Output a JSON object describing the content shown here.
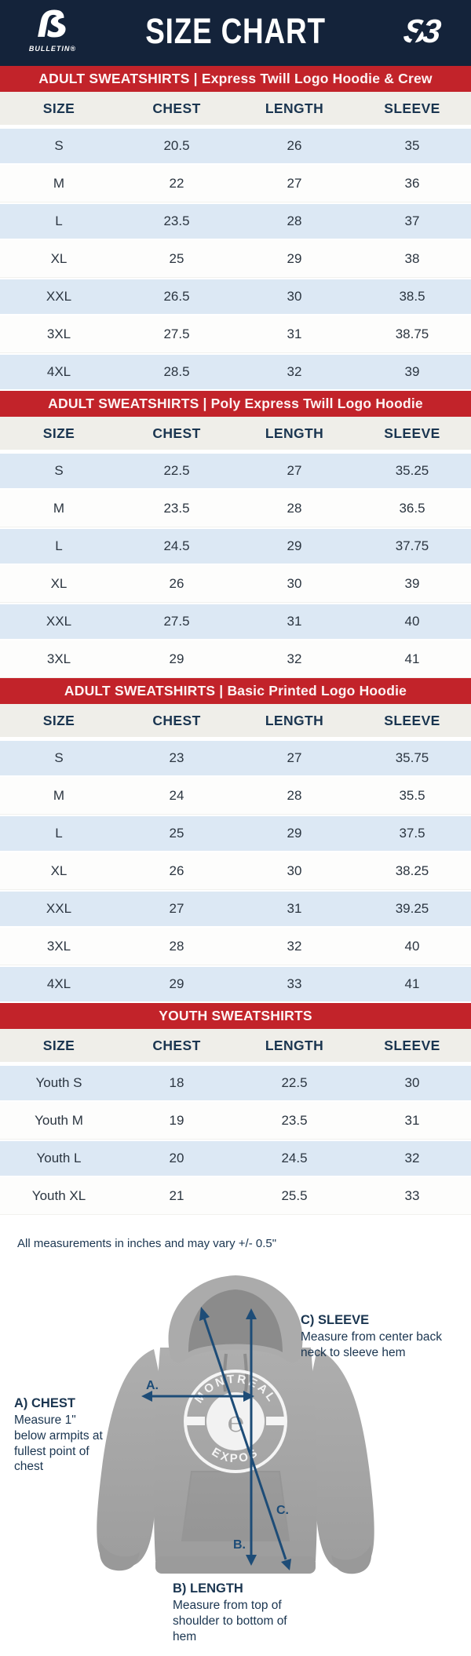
{
  "header": {
    "title": "SIZE CHART",
    "bulletin_mark": "ẞ",
    "bulletin_logo_text": "BULLETIN®",
    "s3_mark": "S3"
  },
  "columns": [
    "SIZE",
    "CHEST",
    "LENGTH",
    "SLEEVE"
  ],
  "tables": [
    {
      "banner": "ADULT SWEATSHIRTS | Express Twill Logo Hoodie & Crew",
      "rows": [
        [
          "S",
          "20.5",
          "26",
          "35"
        ],
        [
          "M",
          "22",
          "27",
          "36"
        ],
        [
          "L",
          "23.5",
          "28",
          "37"
        ],
        [
          "XL",
          "25",
          "29",
          "38"
        ],
        [
          "XXL",
          "26.5",
          "30",
          "38.5"
        ],
        [
          "3XL",
          "27.5",
          "31",
          "38.75"
        ],
        [
          "4XL",
          "28.5",
          "32",
          "39"
        ]
      ]
    },
    {
      "banner": "ADULT SWEATSHIRTS | Poly Express Twill Logo Hoodie",
      "rows": [
        [
          "S",
          "22.5",
          "27",
          "35.25"
        ],
        [
          "M",
          "23.5",
          "28",
          "36.5"
        ],
        [
          "L",
          "24.5",
          "29",
          "37.75"
        ],
        [
          "XL",
          "26",
          "30",
          "39"
        ],
        [
          "XXL",
          "27.5",
          "31",
          "40"
        ],
        [
          "3XL",
          "29",
          "32",
          "41"
        ]
      ]
    },
    {
      "banner": "ADULT SWEATSHIRTS | Basic Printed Logo Hoodie",
      "rows": [
        [
          "S",
          "23",
          "27",
          "35.75"
        ],
        [
          "M",
          "24",
          "28",
          "35.5"
        ],
        [
          "L",
          "25",
          "29",
          "37.5"
        ],
        [
          "XL",
          "26",
          "30",
          "38.25"
        ],
        [
          "XXL",
          "27",
          "31",
          "39.25"
        ],
        [
          "3XL",
          "28",
          "32",
          "40"
        ],
        [
          "4XL",
          "29",
          "33",
          "41"
        ]
      ]
    },
    {
      "banner": "YOUTH SWEATSHIRTS",
      "rows": [
        [
          "Youth S",
          "18",
          "22.5",
          "30"
        ],
        [
          "Youth M",
          "19",
          "23.5",
          "31"
        ],
        [
          "Youth L",
          "20",
          "24.5",
          "32"
        ],
        [
          "Youth XL",
          "21",
          "25.5",
          "33"
        ]
      ]
    }
  ],
  "footer": {
    "note": "All measurements in inches and may vary +/- 0.5\"",
    "chest": {
      "label": "A) CHEST",
      "desc": "Measure 1\" below armpits at fullest point of chest"
    },
    "length": {
      "label": "B) LENGTH",
      "desc": "Measure from top of shoulder to bottom of hem"
    },
    "sleeve": {
      "label": "C) SLEEVE",
      "desc": "Measure from center back neck to sleeve hem"
    },
    "arrow_labels": {
      "a": "A.",
      "b": "B.",
      "c": "C."
    },
    "hoodie_logo": {
      "top": "MONTREAL",
      "bottom": "EXPOS"
    }
  },
  "colors": {
    "navy": "#14233a",
    "red": "#c2232a",
    "row_blue": "#dce8f4",
    "header_gray": "#efeee9",
    "arrow_navy": "#1d4c77",
    "text_navy": "#1a3550"
  }
}
